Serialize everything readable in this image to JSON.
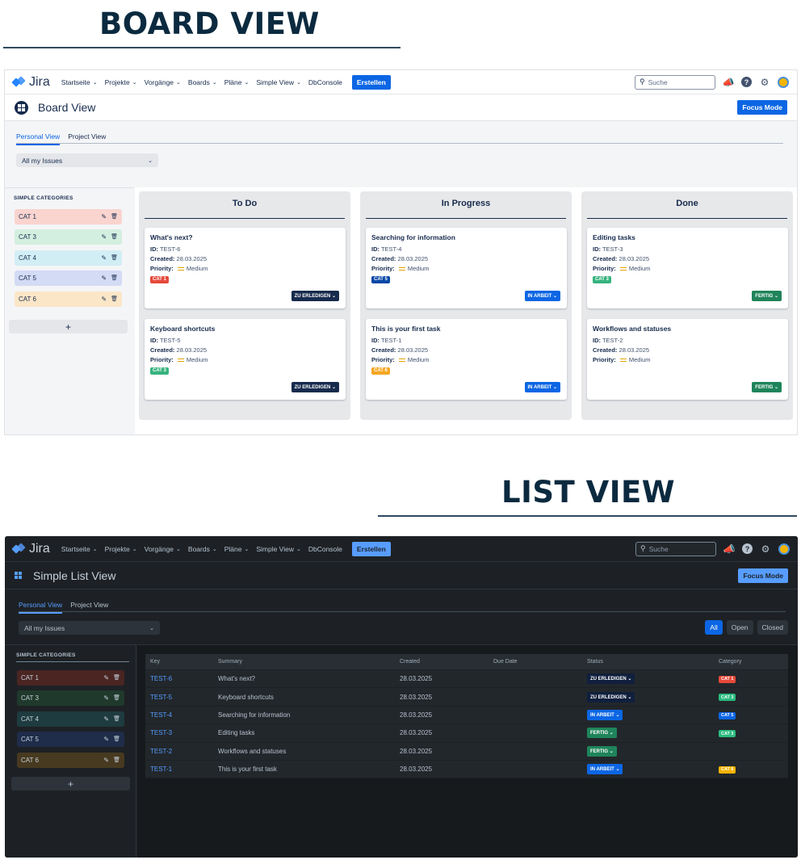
{
  "titles": {
    "board": "BOARD VIEW",
    "list": "LIST VIEW"
  },
  "nav": {
    "logo_text": "Jira",
    "items": [
      "Startseite",
      "Projekte",
      "Vorgänge",
      "Boards",
      "Pläne",
      "Simple View",
      "DbConsole"
    ],
    "create_label": "Erstellen",
    "search_placeholder": "Suche"
  },
  "board": {
    "page_title": "Board View",
    "focus_label": "Focus Mode",
    "tabs": [
      "Personal View",
      "Project View"
    ],
    "filter_value": "All my Issues",
    "sidebar_label": "SIMPLE CATEGORIES",
    "categories": [
      {
        "name": "CAT 1",
        "color": "#fad4cf"
      },
      {
        "name": "CAT 3",
        "color": "#d3efdf"
      },
      {
        "name": "CAT 4",
        "color": "#d2eef5"
      },
      {
        "name": "CAT 5",
        "color": "#d3dbf5"
      },
      {
        "name": "CAT 6",
        "color": "#fbe6c7"
      }
    ],
    "add_label": "+",
    "labels": {
      "id": "ID:",
      "created": "Created:",
      "priority": "Priority:"
    },
    "columns": [
      {
        "title": "To Do",
        "cards": [
          {
            "title": "What's next?",
            "id": "TEST-6",
            "created": "28.03.2025",
            "priority": "Medium",
            "cat": "CAT 1",
            "cat_color": "#e5493a",
            "status": "ZU ERLEDIGEN",
            "status_color": "#172b4d"
          },
          {
            "title": "Keyboard shortcuts",
            "id": "TEST-5",
            "created": "28.03.2025",
            "priority": "Medium",
            "cat": "CAT 3",
            "cat_color": "#36b37e",
            "status": "ZU ERLEDIGEN",
            "status_color": "#172b4d"
          }
        ]
      },
      {
        "title": "In Progress",
        "cards": [
          {
            "title": "Searching for information",
            "id": "TEST-4",
            "created": "28.03.2025",
            "priority": "Medium",
            "cat": "CAT 5",
            "cat_color": "#0747a6",
            "status": "IN ARBEIT",
            "status_color": "#0c66e4"
          },
          {
            "title": "This is your first task",
            "id": "TEST-1",
            "created": "28.03.2025",
            "priority": "Medium",
            "cat": "CAT 6",
            "cat_color": "#f5a623",
            "status": "IN ARBEIT",
            "status_color": "#0c66e4"
          }
        ]
      },
      {
        "title": "Done",
        "cards": [
          {
            "title": "Editing tasks",
            "id": "TEST-3",
            "created": "28.03.2025",
            "priority": "Medium",
            "cat": "CAT 3",
            "cat_color": "#36b37e",
            "status": "FERTIG",
            "status_color": "#1f845a"
          },
          {
            "title": "Workflows and statuses",
            "id": "TEST-2",
            "created": "28.03.2025",
            "priority": "Medium",
            "cat": "",
            "cat_color": "",
            "status": "FERTIG",
            "status_color": "#1f845a"
          }
        ]
      }
    ]
  },
  "list": {
    "page_title": "Simple List View",
    "focus_label": "Focus Mode",
    "tabs": [
      "Personal View",
      "Project View"
    ],
    "filter_value": "All my Issues",
    "filter_buttons": [
      "All",
      "Open",
      "Closed"
    ],
    "sidebar_label": "SIMPLE CATEGORIES",
    "categories": [
      {
        "name": "CAT 1",
        "color": "#4a2522"
      },
      {
        "name": "CAT 3",
        "color": "#1f3a2c"
      },
      {
        "name": "CAT 4",
        "color": "#1e3b40"
      },
      {
        "name": "CAT 5",
        "color": "#1f2c4a"
      },
      {
        "name": "CAT 6",
        "color": "#473a20"
      }
    ],
    "add_label": "+",
    "headers": [
      "Key",
      "Summary",
      "Created",
      "Due Date",
      "Status",
      "Category"
    ],
    "rows": [
      {
        "key": "TEST-6",
        "summary": "What's next?",
        "created": "28.03.2025",
        "due": "",
        "status": "ZU ERLEDIGEN",
        "status_bg": "#0f1f3d",
        "status_fg": "#ffffff",
        "cat": "CAT 1",
        "cat_color": "#e5493a"
      },
      {
        "key": "TEST-5",
        "summary": "Keyboard shortcuts",
        "created": "28.03.2025",
        "due": "",
        "status": "ZU ERLEDIGEN",
        "status_bg": "#0f1f3d",
        "status_fg": "#ffffff",
        "cat": "CAT 3",
        "cat_color": "#2abb7f"
      },
      {
        "key": "TEST-4",
        "summary": "Searching for information",
        "created": "28.03.2025",
        "due": "",
        "status": "IN ARBEIT",
        "status_bg": "#0c66e4",
        "status_fg": "#ffffff",
        "cat": "CAT 5",
        "cat_color": "#0c66e4"
      },
      {
        "key": "TEST-3",
        "summary": "Editing tasks",
        "created": "28.03.2025",
        "due": "",
        "status": "FERTIG",
        "status_bg": "#1f845a",
        "status_fg": "#ffffff",
        "cat": "CAT 3",
        "cat_color": "#2abb7f"
      },
      {
        "key": "TEST-2",
        "summary": "Workflows and statuses",
        "created": "28.03.2025",
        "due": "",
        "status": "FERTIG",
        "status_bg": "#1f845a",
        "status_fg": "#ffffff",
        "cat": "",
        "cat_color": ""
      },
      {
        "key": "TEST-1",
        "summary": "This is your first task",
        "created": "28.03.2025",
        "due": "",
        "status": "IN ARBEIT",
        "status_bg": "#0c66e4",
        "status_fg": "#ffffff",
        "cat": "CAT 6",
        "cat_color": "#f5b400"
      }
    ]
  }
}
